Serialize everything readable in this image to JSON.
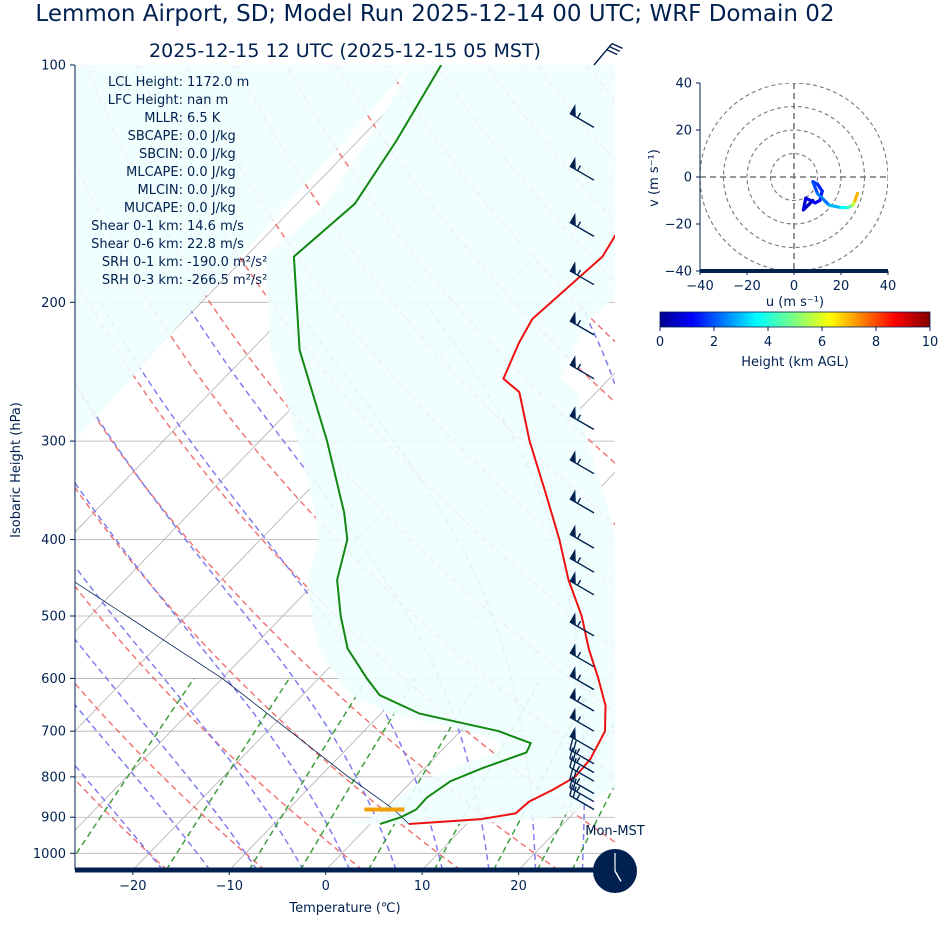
{
  "title": "Lemmon Airport, SD; Model Run 2025-12-14 00 UTC; WRF Domain 02",
  "subtitle": "2025-12-15 12 UTC  (2025-12-15 05 MST)",
  "colors": {
    "text": "#002050",
    "temperature": "#ee1111",
    "dewpoint": "#118811",
    "parcel": "#002050",
    "cape_fill": "#eefefe",
    "dry_adiabats": "#f07070",
    "moist_adiabats": "#7777ee",
    "mixing_ratio": "#339933",
    "isotherms": "#b0b0b0",
    "lcl_marker": "#f0a000"
  },
  "indices": [
    {
      "label": "LCL Height:",
      "value": "1172.0 m"
    },
    {
      "label": "LFC Height:",
      "value": "nan m"
    },
    {
      "label": "MLLR:",
      "value": "6.5 K"
    },
    {
      "label": "SBCAPE:",
      "value": "0.0 J/kg"
    },
    {
      "label": "SBCIN:",
      "value": "0.0 J/kg"
    },
    {
      "label": "MLCAPE:",
      "value": "0.0 J/kg"
    },
    {
      "label": "MLCIN:",
      "value": "0.0 J/kg"
    },
    {
      "label": "MUCAPE:",
      "value": "0.0 J/kg"
    },
    {
      "label": "Shear 0-1 km:",
      "value": "14.6 m/s"
    },
    {
      "label": "Shear 0-6 km:",
      "value": "22.8 m/s"
    },
    {
      "label": "SRH 0-1 km:",
      "value": "-190.0 m²/s²"
    },
    {
      "label": "SRH 0-3 km:",
      "value": "-266.5 m²/s²"
    }
  ],
  "chart_data": [
    {
      "type": "skew-t",
      "xlabel": "Temperature (℃)",
      "ylabel": "Isobaric Height (hPa)",
      "x_ticks": [
        -20,
        -10,
        0,
        10,
        20
      ],
      "y_ticks": [
        100,
        200,
        300,
        400,
        500,
        600,
        700,
        800,
        900,
        1000
      ],
      "xlim": [
        -26,
        30
      ],
      "ylim": [
        1050,
        100
      ],
      "y_scale": "log",
      "temperature_profile": [
        {
          "p": 918,
          "t": 4
        },
        {
          "p": 905,
          "t": 11
        },
        {
          "p": 890,
          "t": 14
        },
        {
          "p": 860,
          "t": 14.2
        },
        {
          "p": 830,
          "t": 15.5
        },
        {
          "p": 800,
          "t": 16.5
        },
        {
          "p": 760,
          "t": 16.3
        },
        {
          "p": 700,
          "t": 15
        },
        {
          "p": 650,
          "t": 12.5
        },
        {
          "p": 600,
          "t": 9
        },
        {
          "p": 550,
          "t": 5
        },
        {
          "p": 500,
          "t": 1
        },
        {
          "p": 450,
          "t": -4
        },
        {
          "p": 400,
          "t": -9
        },
        {
          "p": 350,
          "t": -15
        },
        {
          "p": 300,
          "t": -22
        },
        {
          "p": 260,
          "t": -28
        },
        {
          "p": 250,
          "t": -31
        },
        {
          "p": 225,
          "t": -33
        },
        {
          "p": 210,
          "t": -34
        },
        {
          "p": 175,
          "t": -33
        },
        {
          "p": 150,
          "t": -35
        },
        {
          "p": 125,
          "t": -39
        },
        {
          "p": 100,
          "t": -45
        }
      ],
      "dewpoint_profile": [
        {
          "p": 918,
          "t": 1
        },
        {
          "p": 900,
          "t": 2.5
        },
        {
          "p": 880,
          "t": 3.3
        },
        {
          "p": 850,
          "t": 3.2
        },
        {
          "p": 810,
          "t": 4
        },
        {
          "p": 780,
          "t": 6
        },
        {
          "p": 745,
          "t": 9
        },
        {
          "p": 725,
          "t": 8.5
        },
        {
          "p": 700,
          "t": 4
        },
        {
          "p": 665,
          "t": -6
        },
        {
          "p": 630,
          "t": -12
        },
        {
          "p": 600,
          "t": -15
        },
        {
          "p": 550,
          "t": -20
        },
        {
          "p": 500,
          "t": -24
        },
        {
          "p": 450,
          "t": -28
        },
        {
          "p": 400,
          "t": -31
        },
        {
          "p": 370,
          "t": -34
        },
        {
          "p": 300,
          "t": -43
        },
        {
          "p": 230,
          "t": -55
        },
        {
          "p": 175,
          "t": -65
        },
        {
          "p": 150,
          "t": -64
        },
        {
          "p": 125,
          "t": -66
        },
        {
          "p": 100,
          "t": -69
        }
      ],
      "parcel_profile": [
        {
          "p": 918,
          "t": 4
        },
        {
          "p": 880,
          "t": 1
        },
        {
          "p": 800,
          "t": -7
        },
        {
          "p": 600,
          "t": -30
        },
        {
          "p": 400,
          "t": -66
        },
        {
          "p": 300,
          "t": -92
        }
      ],
      "lcl": {
        "p": 880,
        "t": 0
      }
    },
    {
      "type": "hodograph",
      "xlabel": "u (m s⁻¹)",
      "ylabel": "v (m s⁻¹)",
      "xlim": [
        -40,
        40
      ],
      "ylim": [
        -40,
        40
      ],
      "ticks": [
        -40,
        -20,
        0,
        20,
        40
      ],
      "rings": [
        10,
        20,
        30,
        40
      ],
      "trace": [
        {
          "u": 8,
          "v": -10,
          "h": 0.2
        },
        {
          "u": 6,
          "v": -12,
          "h": 0.4
        },
        {
          "u": 4,
          "v": -14,
          "h": 0.7
        },
        {
          "u": 5,
          "v": -9,
          "h": 0.9
        },
        {
          "u": 9,
          "v": -11,
          "h": 1.1
        },
        {
          "u": 11,
          "v": -10,
          "h": 1.2
        },
        {
          "u": 12,
          "v": -6,
          "h": 1.4
        },
        {
          "u": 10,
          "v": -3,
          "h": 1.6
        },
        {
          "u": 8,
          "v": -2,
          "h": 1.8
        },
        {
          "u": 10,
          "v": -7,
          "h": 2.0
        },
        {
          "u": 15,
          "v": -12,
          "h": 2.6
        },
        {
          "u": 20,
          "v": -13,
          "h": 3.2
        },
        {
          "u": 23,
          "v": -13,
          "h": 4.0
        },
        {
          "u": 25,
          "v": -12,
          "h": 5.0
        },
        {
          "u": 26,
          "v": -10,
          "h": 6.5
        },
        {
          "u": 27,
          "v": -7,
          "h": 7.5
        }
      ]
    },
    {
      "type": "colorbar",
      "label": "Height (km AGL)",
      "ticks": [
        0,
        2,
        4,
        6,
        8,
        10
      ],
      "range": [
        0,
        10
      ]
    }
  ],
  "winds": [
    {
      "p": 100,
      "dir": 40,
      "spd": 30
    },
    {
      "p": 120,
      "dir": 300,
      "spd": 55
    },
    {
      "p": 140,
      "dir": 300,
      "spd": 55
    },
    {
      "p": 165,
      "dir": 300,
      "spd": 55
    },
    {
      "p": 190,
      "dir": 300,
      "spd": 55
    },
    {
      "p": 220,
      "dir": 300,
      "spd": 55
    },
    {
      "p": 250,
      "dir": 300,
      "spd": 55
    },
    {
      "p": 290,
      "dir": 300,
      "spd": 55
    },
    {
      "p": 330,
      "dir": 300,
      "spd": 55
    },
    {
      "p": 370,
      "dir": 300,
      "spd": 55
    },
    {
      "p": 410,
      "dir": 300,
      "spd": 55
    },
    {
      "p": 440,
      "dir": 300,
      "spd": 55
    },
    {
      "p": 470,
      "dir": 300,
      "spd": 55
    },
    {
      "p": 530,
      "dir": 300,
      "spd": 55
    },
    {
      "p": 580,
      "dir": 300,
      "spd": 55
    },
    {
      "p": 620,
      "dir": 300,
      "spd": 55
    },
    {
      "p": 660,
      "dir": 300,
      "spd": 55
    },
    {
      "p": 700,
      "dir": 300,
      "spd": 55
    },
    {
      "p": 740,
      "dir": 300,
      "spd": 50
    },
    {
      "p": 770,
      "dir": 300,
      "spd": 25
    },
    {
      "p": 790,
      "dir": 300,
      "spd": 25
    },
    {
      "p": 810,
      "dir": 300,
      "spd": 25
    },
    {
      "p": 840,
      "dir": 300,
      "spd": 25
    },
    {
      "p": 860,
      "dir": 300,
      "spd": 25
    },
    {
      "p": 880,
      "dir": 300,
      "spd": 25
    }
  ],
  "clock": {
    "label": "Mon-MST",
    "hour": 5,
    "minute": 0
  }
}
